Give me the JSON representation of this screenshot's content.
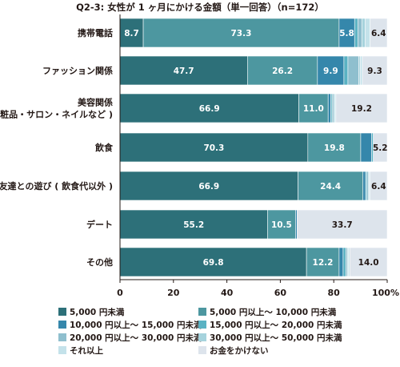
{
  "chart_data": {
    "type": "bar",
    "orientation": "horizontal",
    "stacked": true,
    "title": "Q2-3: 女性が 1 ヶ月にかける金額（単一回答）（n=172）",
    "categories": [
      [
        "携帯電話"
      ],
      [
        "ファッション関係"
      ],
      [
        "美容関係",
        "( 化粧品・サロン・ネイルなど )"
      ],
      [
        "飲食"
      ],
      [
        "友達との遊び ( 飲食代以外 )"
      ],
      [
        "デート"
      ],
      [
        "その他"
      ]
    ],
    "xlim": [
      0,
      100
    ],
    "x_ticks": [
      "0",
      "20",
      "40",
      "60",
      "80",
      "100%"
    ],
    "grid": false,
    "legend_position": "bottom",
    "series": [
      {
        "name": "5,000 円未満",
        "color": "#2d7079",
        "values": [
          8.7,
          47.7,
          66.9,
          70.3,
          66.9,
          55.2,
          69.8
        ],
        "labels": [
          "8.7",
          "47.7",
          "66.9",
          "70.3",
          "66.9",
          "55.2",
          "69.8"
        ]
      },
      {
        "name": "5,000 円以上～ 10,000 円未満",
        "color": "#4d97a0",
        "values": [
          73.3,
          26.2,
          11.0,
          19.8,
          24.4,
          10.5,
          12.2
        ],
        "labels": [
          "73.3",
          "26.2",
          "11.0",
          "19.8",
          "24.4",
          "10.5",
          "12.2"
        ]
      },
      {
        "name": "10,000 円以上～ 15,000 円未満",
        "color": "#3587ab",
        "values": [
          5.8,
          9.9,
          1.0,
          4.1,
          1.0,
          0.6,
          1.5
        ],
        "labels": [
          "5.8",
          "9.9",
          "",
          "",
          "",
          "",
          ""
        ]
      },
      {
        "name": "15,000 円以上～ 20,000 円未満",
        "color": "#5ab2c3",
        "values": [
          1.2,
          1.5,
          0.5,
          0.6,
          0.5,
          0.0,
          1.0
        ],
        "labels": [
          "",
          "",
          "",
          "",
          "",
          "",
          ""
        ]
      },
      {
        "name": "20,000 円以上～ 30,000 円未満",
        "color": "#8fbfce",
        "values": [
          1.5,
          4.1,
          0.6,
          0.0,
          0.6,
          0.0,
          0.6
        ],
        "labels": [
          "",
          "",
          "",
          "",
          "",
          "",
          ""
        ]
      },
      {
        "name": "30,000 円以上～ 50,000 円未満",
        "color": "#a6d3dd",
        "values": [
          1.2,
          0.6,
          0.5,
          0.0,
          0.3,
          0.0,
          0.3
        ],
        "labels": [
          "",
          "",
          "",
          "",
          "",
          "",
          ""
        ]
      },
      {
        "name": "それ以上",
        "color": "#c4e2ea",
        "values": [
          1.9,
          0.7,
          0.3,
          0.0,
          0.3,
          0.0,
          0.6
        ],
        "labels": [
          "",
          "",
          "",
          "",
          "",
          "",
          ""
        ]
      },
      {
        "name": "お金をかけない",
        "color": "#dde4ec",
        "values": [
          6.4,
          9.3,
          19.2,
          5.2,
          6.4,
          33.7,
          14.0
        ],
        "labels": [
          "6.4",
          "9.3",
          "19.2",
          "5.2",
          "6.4",
          "33.7",
          "14.0"
        ]
      }
    ]
  }
}
